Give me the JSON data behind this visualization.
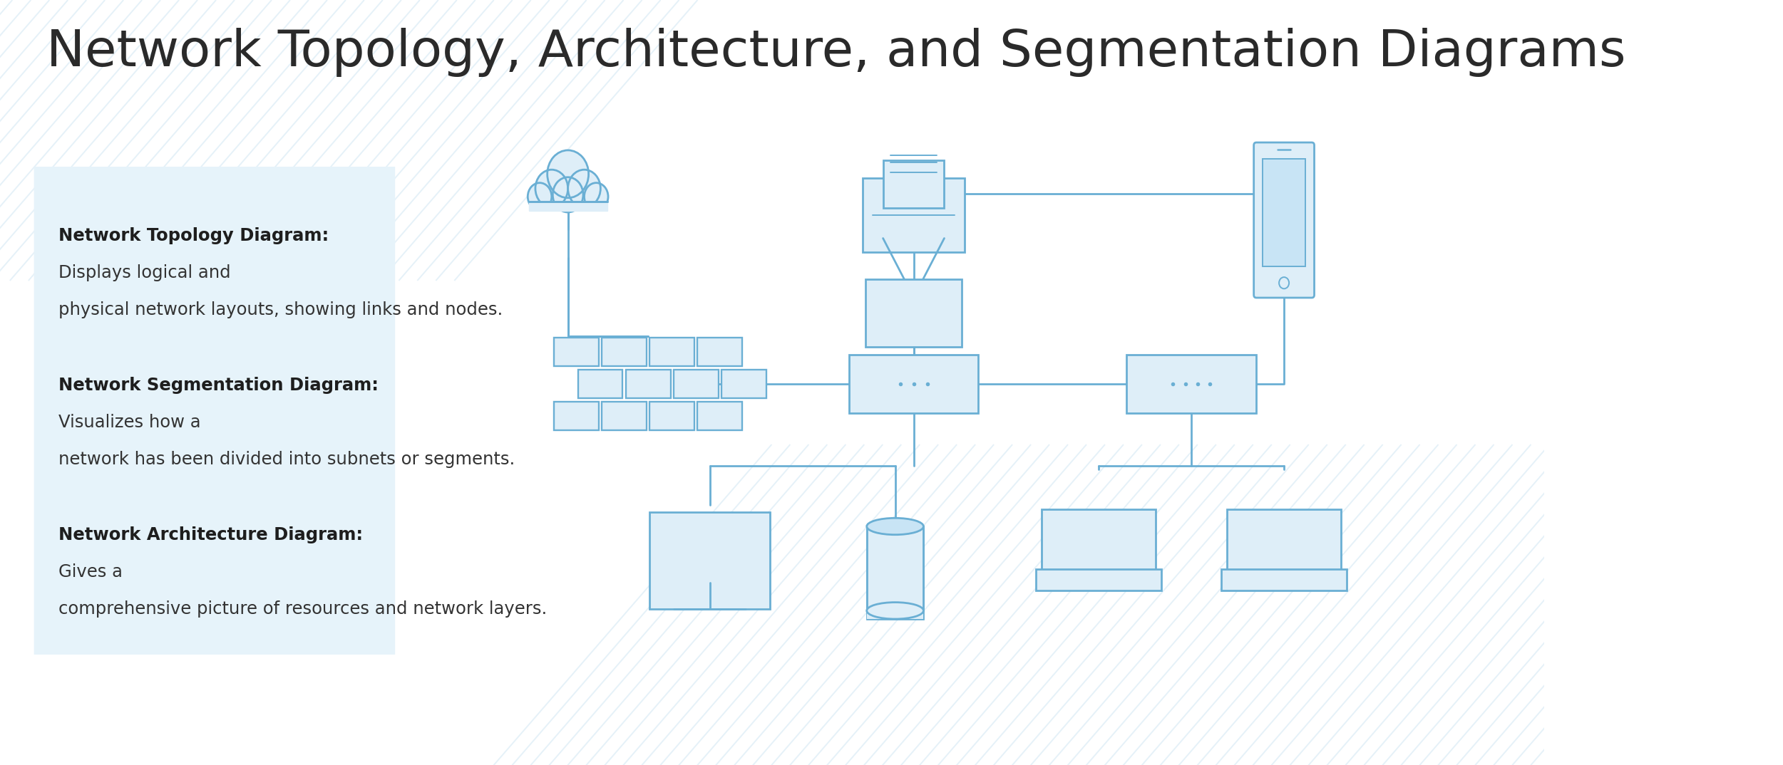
{
  "title": "Network Topology, Architecture, and Segmentation Diagrams",
  "title_fontsize": 52,
  "title_color": "#2a2a2a",
  "bg_color": "#ffffff",
  "box_bg": "#e6f3fa",
  "diagram_color": "#6aafd4",
  "diagram_lw": 2.0,
  "diagram_fill": "#deeef8",
  "stripe_color": "#cce4f2",
  "text_items": [
    {
      "bold": "Network Topology Diagram:",
      "normal": " Displays logical and\nphysical network layouts, showing links and nodes."
    },
    {
      "bold": "Network Segmentation Diagram:",
      "normal": " Visualizes how a\nnetwork has been divided into subnets or segments."
    },
    {
      "bold": "Network Architecture Diagram:",
      "normal": " Gives a\ncomprehensive picture of resources and network layers."
    }
  ],
  "text_fontsize": 17.5,
  "text_bold_color": "#1e1e1e",
  "text_normal_color": "#333333"
}
